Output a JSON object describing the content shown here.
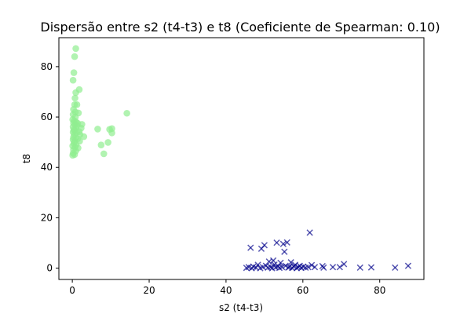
{
  "chart_data": {
    "type": "scatter",
    "title": "Dispersão entre s2 (t4-t3) e t8 (Coeficiente de Spearman: 0.10)",
    "xlabel": "s2 (t4-t3)",
    "ylabel": "t8",
    "xlim": [
      -3.5,
      91.5
    ],
    "ylim": [
      -4.5,
      91.5
    ],
    "xticks": [
      0,
      20,
      40,
      60,
      80
    ],
    "yticks": [
      0,
      20,
      40,
      60,
      80
    ],
    "grid": false,
    "legend": "none",
    "series": [
      {
        "marker": "circle",
        "color": "#90ee90",
        "points": [
          [
            0.9,
            87.2
          ],
          [
            0.6,
            84.0
          ],
          [
            0.4,
            77.6
          ],
          [
            0.2,
            74.6
          ],
          [
            1.8,
            70.9
          ],
          [
            0.9,
            69.7
          ],
          [
            0.7,
            67.5
          ],
          [
            0.6,
            64.9
          ],
          [
            1.2,
            64.9
          ],
          [
            0.3,
            63.0
          ],
          [
            0.8,
            62.0
          ],
          [
            0.2,
            61.0
          ],
          [
            0.8,
            60.0
          ],
          [
            1.6,
            61.6
          ],
          [
            0.1,
            59.0
          ],
          [
            0.5,
            58.5
          ],
          [
            1.0,
            58.0
          ],
          [
            0.3,
            57.6
          ],
          [
            0.7,
            57.0
          ],
          [
            1.4,
            57.5
          ],
          [
            2.5,
            57.1
          ],
          [
            0.2,
            56.1
          ],
          [
            0.9,
            55.5
          ],
          [
            1.2,
            56.6
          ],
          [
            0.4,
            55.0
          ],
          [
            2.3,
            55.6
          ],
          [
            0.6,
            54.5
          ],
          [
            0.2,
            54.0
          ],
          [
            1.1,
            53.9
          ],
          [
            1.8,
            54.2
          ],
          [
            0.5,
            53.0
          ],
          [
            2.0,
            53.0
          ],
          [
            3.0,
            52.2
          ],
          [
            0.3,
            52.0
          ],
          [
            0.9,
            51.7
          ],
          [
            1.4,
            51.4
          ],
          [
            0.2,
            51.0
          ],
          [
            0.6,
            50.3
          ],
          [
            1.9,
            50.4
          ],
          [
            0.4,
            49.5
          ],
          [
            1.0,
            49.0
          ],
          [
            0.1,
            48.5
          ],
          [
            0.7,
            48.0
          ],
          [
            1.5,
            47.7
          ],
          [
            0.3,
            47.0
          ],
          [
            0.9,
            46.5
          ],
          [
            0.2,
            45.6
          ],
          [
            0.6,
            45.1
          ],
          [
            0.1,
            44.8
          ],
          [
            6.6,
            55.2
          ],
          [
            9.7,
            55.1
          ],
          [
            10.3,
            55.4
          ],
          [
            10.3,
            53.7
          ],
          [
            14.2,
            61.5
          ],
          [
            7.5,
            48.9
          ],
          [
            9.3,
            49.9
          ],
          [
            8.2,
            45.4
          ]
        ]
      },
      {
        "marker": "x",
        "color": "#00008b",
        "points": [
          [
            45.3,
            0.1
          ],
          [
            45.9,
            0.4
          ],
          [
            46.4,
            8.1
          ],
          [
            46.7,
            0.0
          ],
          [
            47.1,
            0.6
          ],
          [
            47.8,
            0.2
          ],
          [
            48.3,
            1.3
          ],
          [
            48.9,
            0.0
          ],
          [
            49.2,
            7.7
          ],
          [
            49.6,
            0.4
          ],
          [
            50.0,
            9.1
          ],
          [
            50.4,
            0.9
          ],
          [
            50.9,
            0.2
          ],
          [
            51.2,
            2.6
          ],
          [
            51.6,
            0.4
          ],
          [
            52.0,
            0.0
          ],
          [
            52.3,
            3.0
          ],
          [
            52.6,
            1.4
          ],
          [
            52.9,
            0.3
          ],
          [
            53.2,
            10.1
          ],
          [
            53.6,
            0.7
          ],
          [
            53.9,
            0.1
          ],
          [
            54.2,
            2.1
          ],
          [
            54.6,
            0.4
          ],
          [
            54.9,
            9.6
          ],
          [
            55.2,
            6.5
          ],
          [
            55.5,
            0.9
          ],
          [
            55.9,
            10.2
          ],
          [
            56.2,
            0.2
          ],
          [
            56.5,
            0.5
          ],
          [
            56.9,
            2.3
          ],
          [
            57.2,
            0.1
          ],
          [
            57.6,
            0.6
          ],
          [
            58.0,
            1.3
          ],
          [
            58.4,
            0.0
          ],
          [
            58.8,
            0.4
          ],
          [
            59.2,
            0.9
          ],
          [
            59.6,
            0.1
          ],
          [
            60.1,
            0.6
          ],
          [
            60.7,
            0.2
          ],
          [
            61.4,
            0.4
          ],
          [
            61.8,
            14.1
          ],
          [
            62.3,
            1.2
          ],
          [
            63.1,
            0.4
          ],
          [
            65.1,
            0.8
          ],
          [
            65.4,
            0.2
          ],
          [
            67.8,
            0.4
          ],
          [
            69.6,
            0.4
          ],
          [
            70.7,
            1.6
          ],
          [
            74.9,
            0.2
          ],
          [
            77.8,
            0.3
          ],
          [
            84.0,
            0.2
          ],
          [
            87.4,
            0.9
          ]
        ]
      }
    ]
  }
}
